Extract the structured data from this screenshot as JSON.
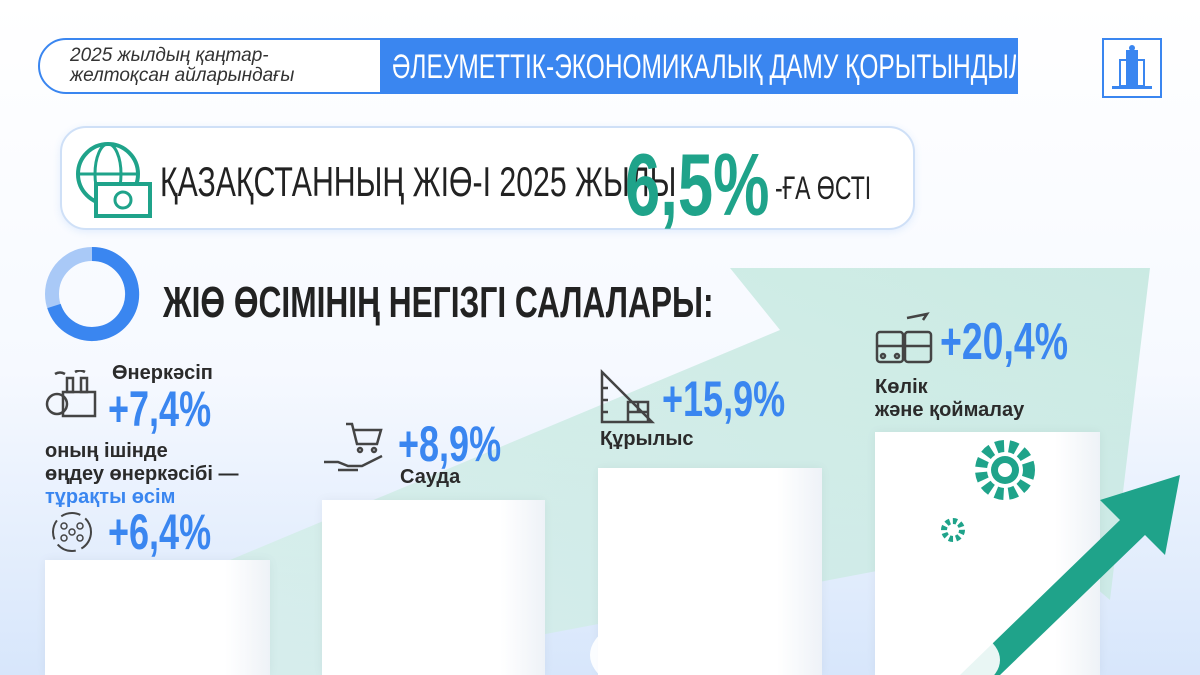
{
  "header": {
    "period": "2025 жылдың қаңтар-\nжелтоқсан айларындағы",
    "period_line1": "2025 жылдың қаңтар-",
    "period_line2": "желтоқсан айларындағы",
    "title": "ӘЛЕУМЕТТІК-ЭКОНОМИКАЛЫҚ ДАМУ ҚОРЫТЫНДЫЛАРЫ",
    "logo_icon": "government-building-icon"
  },
  "headline": {
    "text": "ҚАЗАҚСТАННЫҢ ЖІӨ-І 2025 ЖЫЛЫ",
    "value": "6,5%",
    "suffix": "-ҒА ӨСТІ",
    "icon": "globe-money-icon"
  },
  "section": {
    "title": "ЖІӨ ӨСІМІНІҢ НЕГІЗГІ САЛАЛАРЫ:"
  },
  "sectors": [
    {
      "name": "Өнеркәсіп",
      "value": "+7,4%",
      "icon": "factory-icon",
      "note_line1": "оның ішінде",
      "note_line2": "өңдеу өнеркәсібі —",
      "note_highlight": "тұрақты өсім",
      "sub_value": "+6,4%",
      "sub_icon": "processing-cycle-icon"
    },
    {
      "name": "Сауда",
      "value": "+8,9%",
      "icon": "shopping-cart-hand-icon"
    },
    {
      "name": "Құрылыс",
      "value": "+15,9%",
      "icon": "construction-ruler-icon"
    },
    {
      "name_line1": "Көлік",
      "name_line2": "және қоймалау",
      "value": "+20,4%",
      "icon": "transport-icon"
    }
  ],
  "colors": {
    "blue": "#3a86f0",
    "teal": "#1fa38a",
    "text": "#2b2b2b"
  }
}
